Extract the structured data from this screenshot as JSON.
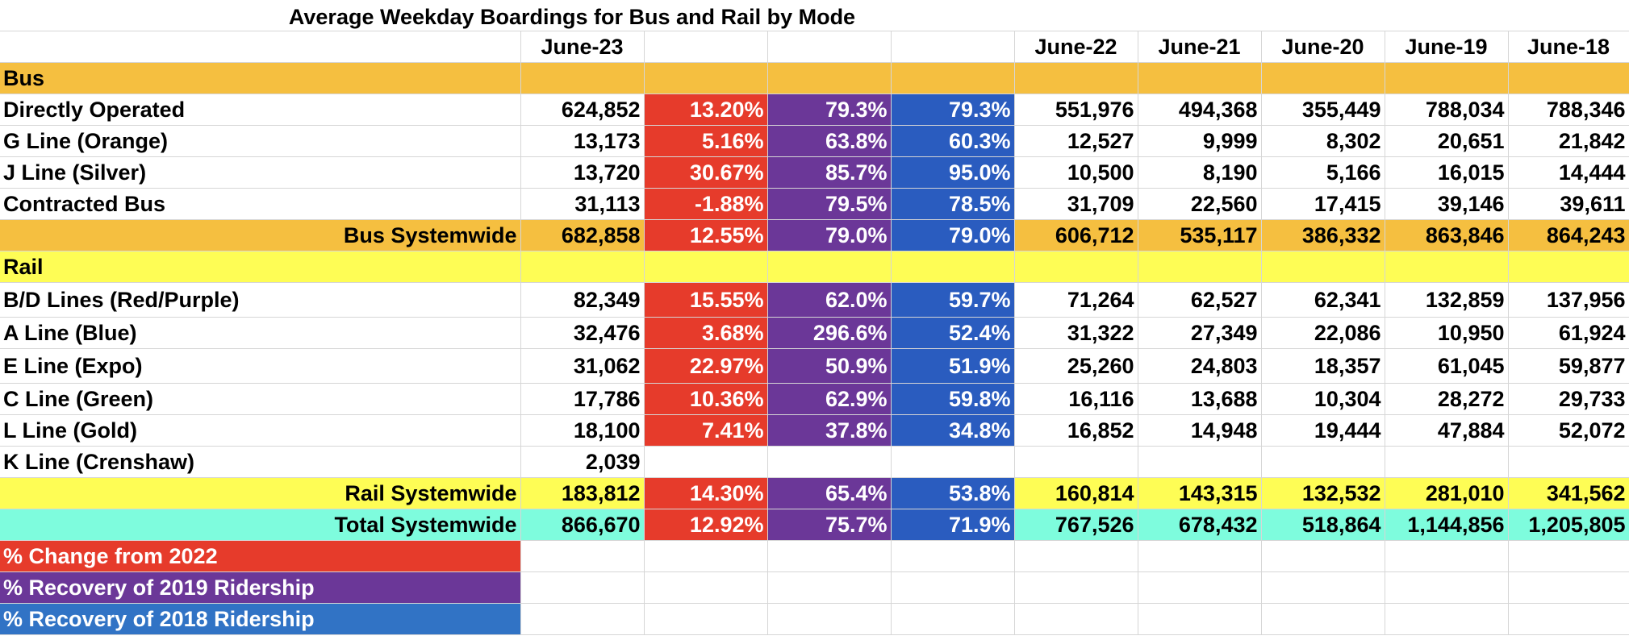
{
  "title": "Average Weekday Boardings for Bus and Rail by Mode",
  "header": {
    "june23": "June-23",
    "june22": "June-22",
    "june21": "June-21",
    "june20": "June-20",
    "june19": "June-19",
    "june18": "June-18"
  },
  "sections": {
    "bus": "Bus",
    "rail": "Rail"
  },
  "bus_rows": [
    {
      "label": "Directly Operated",
      "j23": "624,852",
      "chg": "13.20%",
      "rec19": "79.3%",
      "rec18": "79.3%",
      "j22": "551,976",
      "j21": "494,368",
      "j20": "355,449",
      "j19": "788,034",
      "j18": "788,346"
    },
    {
      "label": "G Line (Orange)",
      "j23": "13,173",
      "chg": "5.16%",
      "rec19": "63.8%",
      "rec18": "60.3%",
      "j22": "12,527",
      "j21": "9,999",
      "j20": "8,302",
      "j19": "20,651",
      "j18": "21,842"
    },
    {
      "label": "J Line (Silver)",
      "j23": "13,720",
      "chg": "30.67%",
      "rec19": "85.7%",
      "rec18": "95.0%",
      "j22": "10,500",
      "j21": "8,190",
      "j20": "5,166",
      "j19": "16,015",
      "j18": "14,444"
    },
    {
      "label": "Contracted Bus",
      "j23": "31,113",
      "chg": "-1.88%",
      "rec19": "79.5%",
      "rec18": "78.5%",
      "j22": "31,709",
      "j21": "22,560",
      "j20": "17,415",
      "j19": "39,146",
      "j18": "39,611"
    }
  ],
  "bus_total": {
    "label": "Bus Systemwide",
    "j23": "682,858",
    "chg": "12.55%",
    "rec19": "79.0%",
    "rec18": "79.0%",
    "j22": "606,712",
    "j21": "535,117",
    "j20": "386,332",
    "j19": "863,846",
    "j18": "864,243"
  },
  "rail_rows": [
    {
      "label": "B/D Lines (Red/Purple)",
      "j23": "82,349",
      "chg": "15.55%",
      "rec19": "62.0%",
      "rec18": "59.7%",
      "j22": "71,264",
      "j21": "62,527",
      "j20": "62,341",
      "j19": "132,859",
      "j18": "137,956"
    },
    {
      "label": "A Line (Blue)",
      "j23": "32,476",
      "chg": "3.68%",
      "rec19": "296.6%",
      "rec18": "52.4%",
      "j22": "31,322",
      "j21": "27,349",
      "j20": "22,086",
      "j19": "10,950",
      "j18": "61,924"
    },
    {
      "label": "E Line (Expo)",
      "j23": "31,062",
      "chg": "22.97%",
      "rec19": "50.9%",
      "rec18": "51.9%",
      "j22": "25,260",
      "j21": "24,803",
      "j20": "18,357",
      "j19": "61,045",
      "j18": "59,877"
    },
    {
      "label": "C Line (Green)",
      "j23": "17,786",
      "chg": "10.36%",
      "rec19": "62.9%",
      "rec18": "59.8%",
      "j22": "16,116",
      "j21": "13,688",
      "j20": "10,304",
      "j19": "28,272",
      "j18": "29,733"
    },
    {
      "label": "L Line (Gold)",
      "j23": "18,100",
      "chg": "7.41%",
      "rec19": "37.8%",
      "rec18": "34.8%",
      "j22": "16,852",
      "j21": "14,948",
      "j20": "19,444",
      "j19": "47,884",
      "j18": "52,072"
    }
  ],
  "rail_k": {
    "label": "K Line (Crenshaw)",
    "j23": "2,039"
  },
  "rail_total": {
    "label": "Rail Systemwide",
    "j23": "183,812",
    "chg": "14.30%",
    "rec19": "65.4%",
    "rec18": "53.8%",
    "j22": "160,814",
    "j21": "143,315",
    "j20": "132,532",
    "j19": "281,010",
    "j18": "341,562"
  },
  "total": {
    "label": "Total Systemwide",
    "j23": "866,670",
    "chg": "12.92%",
    "rec19": "75.7%",
    "rec18": "71.9%",
    "j22": "767,526",
    "j21": "678,432",
    "j20": "518,864",
    "j19": "1,144,856",
    "j18": "1,205,805"
  },
  "legend": {
    "change": "% Change from 2022",
    "rec2019": "% Recovery of 2019 Ridership",
    "rec2018": "% Recovery of 2018 Ridership"
  },
  "colors": {
    "bus_band": "#f5bf40",
    "rail_band": "#fefd55",
    "total_band": "#7efcdd",
    "change": "#e63b2b",
    "recovery_2019": "#6b3798",
    "recovery_2018": "#2a5cbf"
  }
}
